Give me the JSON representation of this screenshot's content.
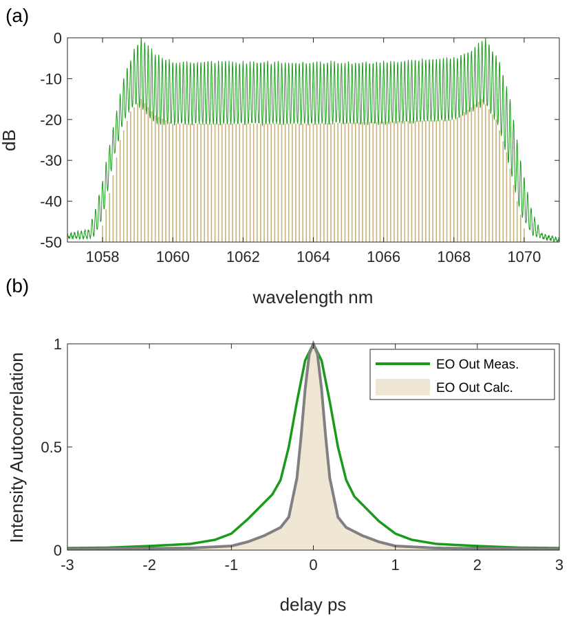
{
  "colors": {
    "measured": "#1a9a1a",
    "calculated_fill": "#efe6d3",
    "calculated_bars": "#c9b27a",
    "gray_line": "#808080",
    "axis": "#262626"
  },
  "chart_data": [
    {
      "type": "line",
      "panel_label": "(a)",
      "title": "",
      "xlabel": "wavelength nm",
      "ylabel": "dB",
      "xlim": [
        1057,
        1071
      ],
      "ylim": [
        -50,
        0
      ],
      "xticks": [
        1058,
        1060,
        1062,
        1064,
        1066,
        1068,
        1070
      ],
      "xtick_labels": [
        "1058",
        "1060",
        "1062",
        "1064",
        "1066",
        "1068",
        "1070"
      ],
      "yticks": [
        0,
        -10,
        -20,
        -30,
        -40,
        -50
      ],
      "ytick_labels": [
        "0",
        "-10",
        "-20",
        "-30",
        "-40",
        "-50"
      ],
      "series": [
        {
          "name": "measured spectrum (green)",
          "style": "line",
          "envelope_wavelength": [
            1057.0,
            1057.6,
            1057.8,
            1058.0,
            1058.3,
            1058.6,
            1058.9,
            1059.1,
            1059.5,
            1060.0,
            1062.0,
            1064.0,
            1066.0,
            1068.0,
            1068.5,
            1068.9,
            1069.3,
            1069.6,
            1069.9,
            1070.2,
            1070.5,
            1071.0
          ],
          "envelope_db_upper": [
            -48,
            -47,
            -42,
            -35,
            -22,
            -10,
            -3,
            0,
            -4,
            -6,
            -6,
            -6,
            -6,
            -5,
            -3,
            0,
            -6,
            -15,
            -30,
            -42,
            -48,
            -49
          ],
          "envelope_db_lower": [
            -49,
            -49,
            -48,
            -44,
            -30,
            -20,
            -16,
            -17,
            -21,
            -21,
            -21,
            -21,
            -21,
            -20,
            -18,
            -16,
            -22,
            -32,
            -43,
            -48,
            -49,
            -50
          ],
          "comb_spacing_nm": 0.1
        },
        {
          "name": "calculated comb lines (tan bars)",
          "style": "bars",
          "envelope_wavelength": [
            1057.9,
            1058.2,
            1058.5,
            1058.8,
            1059.1,
            1059.5,
            1060.0,
            1064.0,
            1068.0,
            1068.5,
            1068.8,
            1069.2,
            1069.5,
            1069.8,
            1070.1
          ],
          "envelope_db": [
            -50,
            -38,
            -25,
            -18,
            -15,
            -19,
            -21,
            -21,
            -20,
            -17,
            -15,
            -20,
            -28,
            -40,
            -50
          ],
          "comb_spacing_nm": 0.1
        }
      ]
    },
    {
      "type": "line",
      "panel_label": "(b)",
      "title": "",
      "xlabel": "delay ps",
      "ylabel": "Intensity Autocorrelation",
      "xlim": [
        -3,
        3
      ],
      "ylim": [
        0,
        1
      ],
      "xticks": [
        -3,
        -2,
        -1,
        0,
        1,
        2,
        3
      ],
      "xtick_labels": [
        "-3",
        "-2",
        "-1",
        "0",
        "1",
        "2",
        "3"
      ],
      "yticks": [
        0,
        0.5,
        1
      ],
      "ytick_labels": [
        "0",
        "0.5",
        "1"
      ],
      "legend_position": "top-right",
      "series": [
        {
          "name": "EO Out Meas.",
          "style": "line",
          "x": [
            -3.0,
            -2.5,
            -2.0,
            -1.5,
            -1.2,
            -1.0,
            -0.8,
            -0.6,
            -0.5,
            -0.4,
            -0.3,
            -0.2,
            -0.1,
            0.0,
            0.1,
            0.2,
            0.3,
            0.4,
            0.5,
            0.6,
            0.8,
            1.0,
            1.2,
            1.5,
            2.0,
            2.5,
            3.0
          ],
          "y": [
            0.01,
            0.012,
            0.02,
            0.03,
            0.05,
            0.08,
            0.15,
            0.23,
            0.27,
            0.34,
            0.5,
            0.72,
            0.92,
            1.0,
            0.92,
            0.72,
            0.5,
            0.34,
            0.26,
            0.22,
            0.14,
            0.08,
            0.05,
            0.03,
            0.02,
            0.012,
            0.01
          ]
        },
        {
          "name": "EO Out Calc.",
          "style": "area",
          "x": [
            -3.0,
            -1.5,
            -1.0,
            -0.8,
            -0.6,
            -0.5,
            -0.4,
            -0.3,
            -0.2,
            -0.15,
            -0.1,
            -0.05,
            0.0,
            0.05,
            0.1,
            0.15,
            0.2,
            0.3,
            0.4,
            0.5,
            0.6,
            0.8,
            1.0,
            1.5,
            3.0
          ],
          "y": [
            0.005,
            0.01,
            0.02,
            0.04,
            0.07,
            0.09,
            0.11,
            0.16,
            0.35,
            0.55,
            0.78,
            0.95,
            1.0,
            0.95,
            0.78,
            0.55,
            0.35,
            0.16,
            0.11,
            0.09,
            0.07,
            0.04,
            0.02,
            0.01,
            0.005
          ]
        },
        {
          "name": "calc. outline (gray)",
          "style": "line",
          "x": [
            -3.0,
            -1.5,
            -1.0,
            -0.8,
            -0.6,
            -0.5,
            -0.4,
            -0.3,
            -0.2,
            -0.15,
            -0.1,
            -0.05,
            0.0,
            0.05,
            0.1,
            0.15,
            0.2,
            0.3,
            0.4,
            0.5,
            0.6,
            0.8,
            1.0,
            1.5,
            3.0
          ],
          "y": [
            0.005,
            0.01,
            0.02,
            0.04,
            0.07,
            0.09,
            0.11,
            0.16,
            0.35,
            0.55,
            0.78,
            0.95,
            1.0,
            0.95,
            0.78,
            0.55,
            0.35,
            0.16,
            0.11,
            0.09,
            0.07,
            0.04,
            0.02,
            0.01,
            0.005
          ]
        }
      ]
    }
  ]
}
